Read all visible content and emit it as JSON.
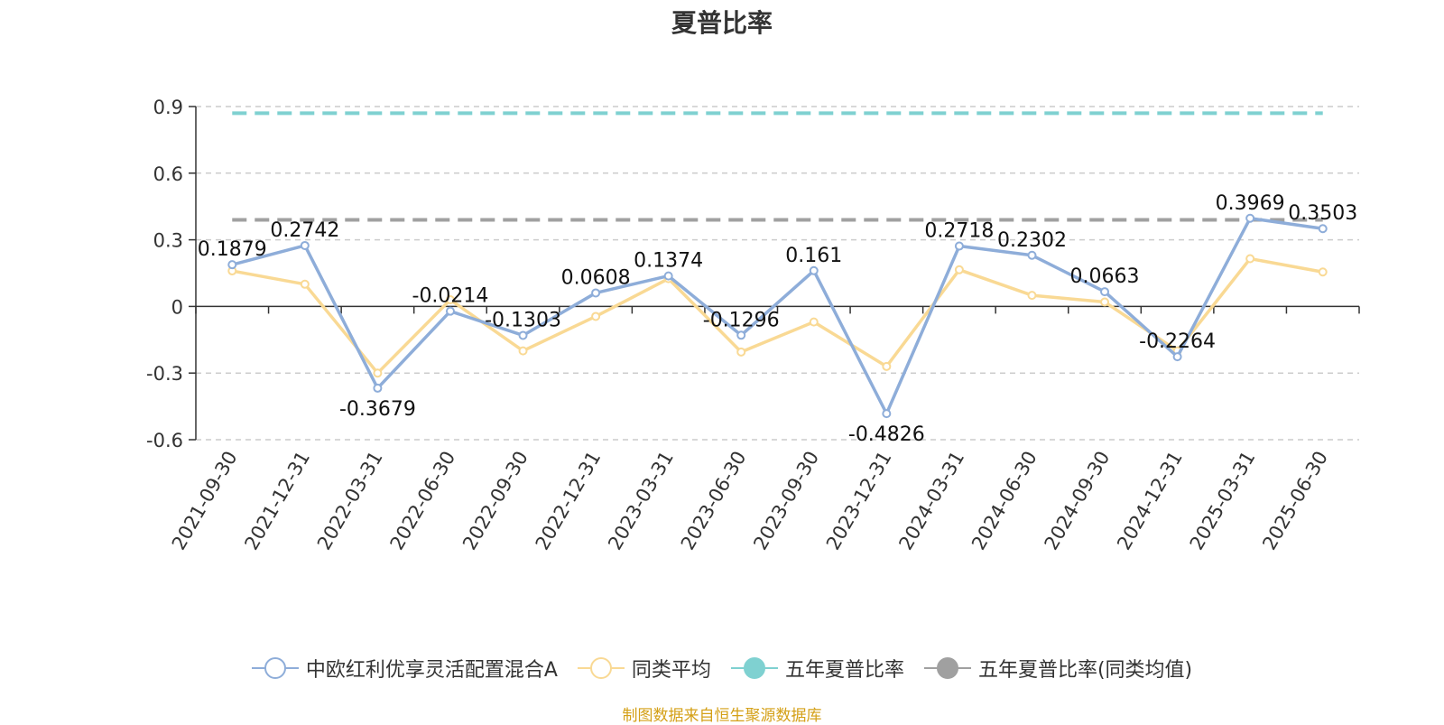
{
  "chart_data": {
    "type": "line",
    "title": "夏普比率",
    "categories": [
      "2021-09-30",
      "2021-12-31",
      "2022-03-31",
      "2022-06-30",
      "2022-09-30",
      "2022-12-31",
      "2023-03-31",
      "2023-06-30",
      "2023-09-30",
      "2023-12-31",
      "2024-03-31",
      "2024-06-30",
      "2024-09-30",
      "2024-12-31",
      "2025-03-31",
      "2025-06-30"
    ],
    "ylim": [
      -0.6,
      0.9
    ],
    "yticks": [
      0.9,
      0.6,
      0.3,
      0,
      -0.3,
      -0.6
    ],
    "ytick_labels": [
      "0.9",
      "0.6",
      "0.3",
      "0",
      "-0.3",
      "-0.6"
    ],
    "grid": true,
    "legend_position": "bottom",
    "series": [
      {
        "name": "中欧红利优享灵活配置混合A",
        "color": "#8eadd9",
        "values": [
          0.1879,
          0.2742,
          -0.3679,
          -0.0214,
          -0.1303,
          0.0608,
          0.1374,
          -0.1296,
          0.161,
          -0.4826,
          0.2718,
          0.2302,
          0.0663,
          -0.2264,
          0.3969,
          0.3503
        ],
        "data_labels": [
          "0.1879",
          "0.2742",
          "-0.3679",
          "-0.0214",
          "-0.1303",
          "0.0608",
          "0.1374",
          "-0.1296",
          "0.161",
          "-0.4826",
          "0.2718",
          "0.2302",
          "0.0663",
          "-0.2264",
          "0.3969",
          "0.3503"
        ]
      },
      {
        "name": "同类平均",
        "color": "#f9d994",
        "values": [
          0.16,
          0.1,
          -0.3,
          0.03,
          -0.2,
          -0.045,
          0.125,
          -0.205,
          -0.07,
          -0.27,
          0.165,
          0.05,
          0.02,
          -0.2,
          0.215,
          0.155
        ]
      }
    ],
    "reference_lines": [
      {
        "name": "五年夏普比率",
        "color": "#7fd1d1",
        "value": 0.87
      },
      {
        "name": "五年夏普比率(同类均值)",
        "color": "#a0a0a0",
        "value": 0.39
      }
    ]
  },
  "source_note": "制图数据来自恒生聚源数据库"
}
